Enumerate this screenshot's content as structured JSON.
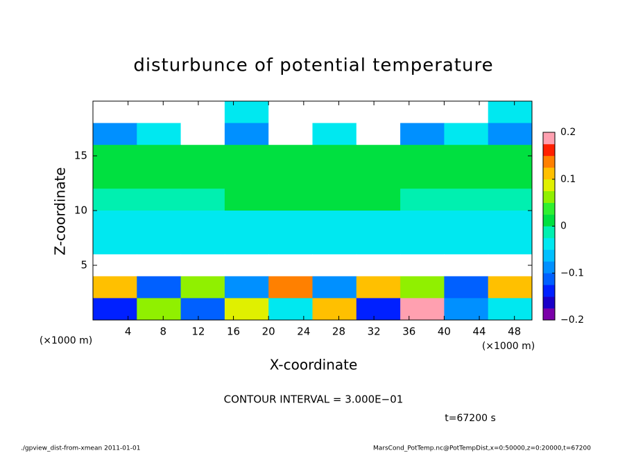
{
  "chart_data": {
    "type": "heatmap",
    "title": "disturbunce of potential temperature",
    "x_label": "X-coordinate",
    "y_label": "Z-coordinate",
    "x_unit_left": "(×1000 m)",
    "x_unit_right": "(×1000 m)",
    "contour_note": "CONTOUR INTERVAL = 3.000E−01",
    "time_note": "t=67200 s",
    "footer_left": "./gpview_dist-from-xmean  2011-01-01",
    "footer_right": "MarsCond_PotTemp.nc@PotTempDist,x=0:50000,z=0:20000,t=67200",
    "xlim": [
      0,
      50
    ],
    "ylim": [
      0,
      20
    ],
    "xticks": [
      4,
      8,
      12,
      16,
      20,
      24,
      28,
      32,
      36,
      40,
      44,
      48
    ],
    "yticks": [
      5,
      10,
      15
    ],
    "clim": [
      -0.2,
      0.2
    ],
    "cticks": [
      {
        "value": 0.2,
        "label": "0.2"
      },
      {
        "value": 0.1,
        "label": "0.1"
      },
      0,
      {
        "value": -0.1,
        "label": "−0.1"
      },
      {
        "value": -0.2,
        "label": "−0.2"
      }
    ],
    "colors": [
      "#7a00a8",
      "#1a00c8",
      "#0020ff",
      "#0060ff",
      "#0090ff",
      "#00c0ff",
      "#00e8f0",
      "#00f0b0",
      "#00e040",
      "#30f030",
      "#90f000",
      "#e0f000",
      "#ffc000",
      "#ff8000",
      "#ff2000",
      "#ffa0b0"
    ],
    "out_of_range_color": "#ffffff",
    "values": [
      [
        0.25,
        0.22,
        0.25,
        -0.05,
        0.25,
        0.25,
        0.22,
        0.25,
        0.25,
        -0.05
      ],
      [
        -0.08,
        -0.05,
        0.22,
        -0.1,
        0.22,
        -0.05,
        0.22,
        -0.08,
        -0.05,
        -0.1
      ],
      [
        0.01,
        0.01,
        0.01,
        0.01,
        0.01,
        0.01,
        0.01,
        0.01,
        0.01,
        0.01
      ],
      [
        0,
        0,
        0,
        0,
        0,
        0,
        0,
        0,
        0,
        0
      ],
      [
        -0.02,
        -0.01,
        -0.01,
        0,
        0,
        0,
        0,
        -0.01,
        -0.01,
        -0.02
      ],
      [
        -0.03,
        -0.03,
        -0.03,
        -0.03,
        -0.03,
        -0.03,
        -0.03,
        -0.03,
        -0.03,
        -0.03
      ],
      [
        -0.05,
        -0.05,
        -0.05,
        -0.05,
        -0.05,
        -0.05,
        -0.05,
        -0.05,
        -0.05,
        -0.05
      ],
      [
        -0.25,
        -0.25,
        -0.25,
        -0.25,
        -0.25,
        -0.25,
        -0.25,
        -0.25,
        -0.25,
        -0.25
      ],
      [
        0.1,
        -0.12,
        0.05,
        -0.1,
        0.15,
        -0.08,
        0.12,
        0.05,
        -0.12,
        0.1
      ],
      [
        -0.15,
        0.05,
        -0.12,
        0.08,
        -0.05,
        0.1,
        -0.15,
        0.18,
        -0.1,
        -0.05
      ]
    ]
  }
}
